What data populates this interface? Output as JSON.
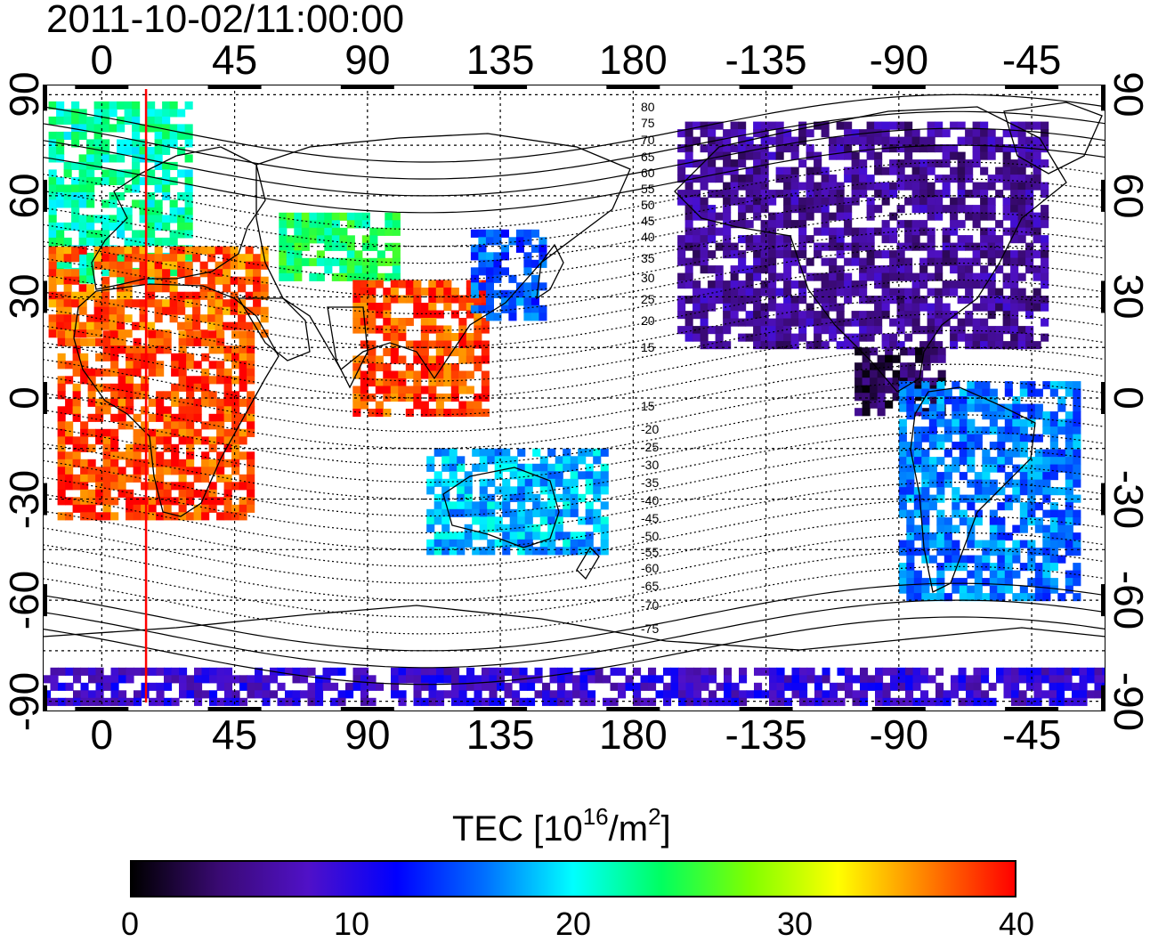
{
  "timestamp": "2011-10-02/11:00:00",
  "map": {
    "lon_ticks": [
      {
        "label": "0",
        "lon": 0
      },
      {
        "label": "45",
        "lon": 45
      },
      {
        "label": "90",
        "lon": 90
      },
      {
        "label": "135",
        "lon": 135
      },
      {
        "label": "180",
        "lon": 180
      },
      {
        "label": "-135",
        "lon": 225
      },
      {
        "label": "-90",
        "lon": 270
      },
      {
        "label": "-45",
        "lon": 315
      }
    ],
    "lat_ticks": [
      {
        "label": "90",
        "lat": 90
      },
      {
        "label": "60",
        "lat": 60
      },
      {
        "label": "30",
        "lat": 30
      },
      {
        "label": "0",
        "lat": 0
      },
      {
        "label": "-30",
        "lat": -30
      },
      {
        "label": "-60",
        "lat": -60
      },
      {
        "label": "-90",
        "lat": -90
      }
    ],
    "lon_range": [
      -20,
      340
    ],
    "lat_range": [
      -93,
      93
    ],
    "terminator_lon": 15,
    "contour_labels": [
      "80",
      "75",
      "70",
      "65",
      "60",
      "55",
      "50",
      "45",
      "40",
      "35",
      "30",
      "25",
      "20",
      "15",
      "15",
      "-20",
      "-25",
      "-30",
      "-35",
      "-40",
      "-45",
      "-50",
      "-55",
      "-60",
      "-65",
      "-70",
      "-75"
    ]
  },
  "colorbar": {
    "title_prefix": "TEC  [10",
    "title_exp1": "16",
    "title_mid": "/m",
    "title_exp2": "2",
    "title_suffix": "]",
    "ticks": [
      "0",
      "10",
      "20",
      "30",
      "40"
    ],
    "colors": [
      "#000000",
      "#3a0a74",
      "#5011c8",
      "#0000ff",
      "#0070ff",
      "#00ffff",
      "#00ff60",
      "#80ff00",
      "#ffff00",
      "#ff8000",
      "#ff0000"
    ]
  },
  "tec_regions": [
    {
      "name": "europe",
      "lon": [
        -18,
        30
      ],
      "lat": [
        35,
        88
      ],
      "tec": 22
    },
    {
      "name": "north-africa",
      "lon": [
        -18,
        55
      ],
      "lat": [
        20,
        45
      ],
      "tec": 37
    },
    {
      "name": "africa",
      "lon": [
        -15,
        50
      ],
      "lat": [
        -35,
        20
      ],
      "tec": 38
    },
    {
      "name": "central-asia",
      "lon": [
        60,
        100
      ],
      "lat": [
        35,
        55
      ],
      "tec": 24
    },
    {
      "name": "south-asia",
      "lon": [
        85,
        130
      ],
      "lat": [
        -5,
        35
      ],
      "tec": 38
    },
    {
      "name": "japan",
      "lon": [
        125,
        150
      ],
      "lat": [
        25,
        50
      ],
      "tec": 15
    },
    {
      "name": "australia",
      "lon": [
        110,
        170
      ],
      "lat": [
        -45,
        -15
      ],
      "tec": 18
    },
    {
      "name": "north-america",
      "lon": [
        195,
        320
      ],
      "lat": [
        15,
        82
      ],
      "tec": 6
    },
    {
      "name": "central-america",
      "lon": [
        255,
        285
      ],
      "lat": [
        -5,
        15
      ],
      "tec": 3
    },
    {
      "name": "south-america",
      "lon": [
        270,
        330
      ],
      "lat": [
        -60,
        5
      ],
      "tec": 16
    },
    {
      "name": "antarctica",
      "lon": [
        -20,
        340
      ],
      "lat": [
        -90,
        -80
      ],
      "tec": 9
    }
  ]
}
